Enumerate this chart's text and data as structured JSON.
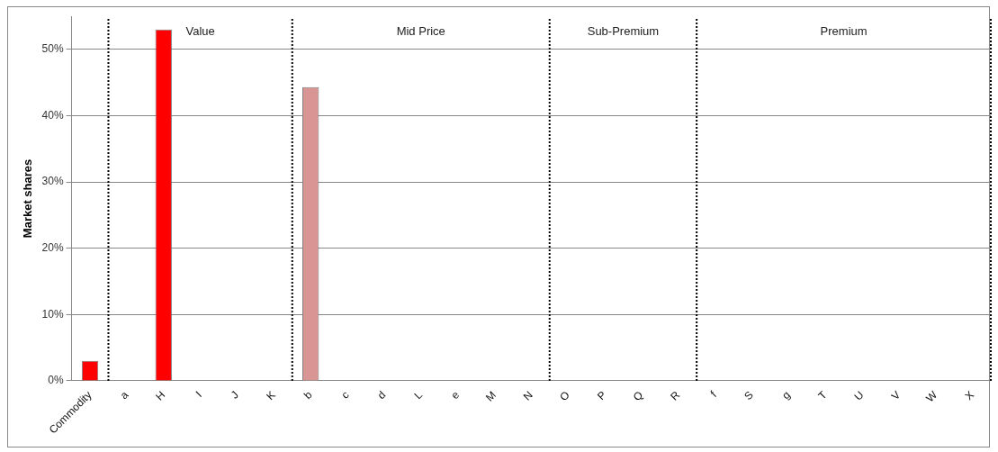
{
  "chart_data": {
    "type": "bar",
    "ylabel": "Market shares",
    "categories": [
      "Commodity",
      "a",
      "H",
      "I",
      "J",
      "K",
      "b",
      "c",
      "d",
      "L",
      "e",
      "M",
      "N",
      "O",
      "P",
      "Q",
      "R",
      "f",
      "S",
      "g",
      "T",
      "U",
      "V",
      "W",
      "X"
    ],
    "values": [
      3,
      0,
      53,
      0,
      0,
      0,
      44.3,
      0,
      0,
      0,
      0,
      0,
      0,
      0,
      0,
      0,
      0,
      0,
      0,
      0,
      0,
      0,
      0,
      0,
      0
    ],
    "colors": [
      "#ff0000",
      "#ff0000",
      "#ff0000",
      "#ff0000",
      "#ff0000",
      "#ff0000",
      "#d99594",
      "#d99594",
      "#d99594",
      "#d99594",
      "#d99594",
      "#d99594",
      "#d99594",
      "#d99594",
      "#d99594",
      "#d99594",
      "#d99594",
      "#d99594",
      "#d99594",
      "#d99594",
      "#d99594",
      "#d99594",
      "#d99594",
      "#d99594",
      "#d99594"
    ],
    "ylim": [
      0,
      55
    ],
    "yticks": [
      {
        "value": 0,
        "label": "0%"
      },
      {
        "value": 10,
        "label": "10%"
      },
      {
        "value": 20,
        "label": "20%"
      },
      {
        "value": 30,
        "label": "30%"
      },
      {
        "value": 40,
        "label": "40%"
      },
      {
        "value": 50,
        "label": "50%"
      }
    ],
    "grid": "y",
    "legend": false,
    "annotations": [
      "Value",
      "Mid Price",
      "Sub-Premium",
      "Premium"
    ]
  }
}
